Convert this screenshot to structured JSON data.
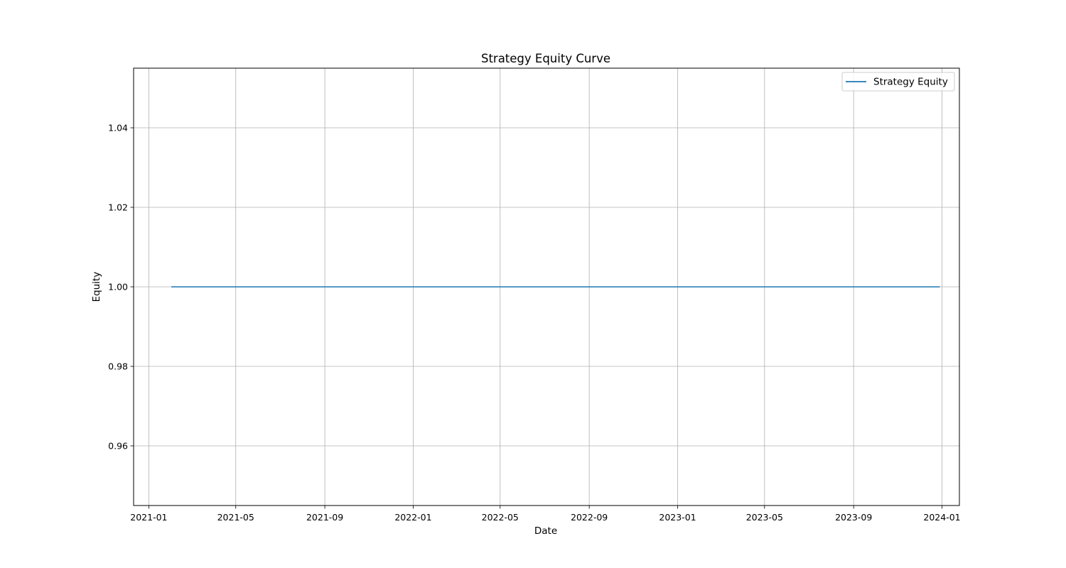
{
  "chart_data": {
    "type": "line",
    "title": "Strategy Equity Curve",
    "xlabel": "Date",
    "ylabel": "Equity",
    "xlim": [
      "2020-12-11",
      "2024-01-25"
    ],
    "ylim": [
      0.945,
      1.055
    ],
    "x_ticks": [
      "2021-01",
      "2021-05",
      "2021-09",
      "2022-01",
      "2022-05",
      "2022-09",
      "2023-01",
      "2023-05",
      "2023-09",
      "2024-01"
    ],
    "y_ticks": [
      0.96,
      0.98,
      1.0,
      1.02,
      1.04
    ],
    "y_tick_labels": [
      "0.96",
      "0.98",
      "1.00",
      "1.02",
      "1.04"
    ],
    "grid": true,
    "legend_position": "top-right",
    "series": [
      {
        "name": "Strategy Equity",
        "color": "#1f77b4",
        "x": [
          "2021-02-01",
          "2023-12-29"
        ],
        "y": [
          1.0,
          1.0
        ]
      }
    ]
  }
}
